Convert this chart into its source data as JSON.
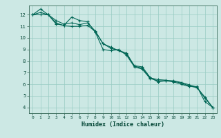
{
  "title": "",
  "xlabel": "Humidex (Indice chaleur)",
  "ylabel": "",
  "bg_color": "#cce8e4",
  "grid_color": "#99ccc4",
  "line_color": "#006655",
  "xlim": [
    -0.5,
    23.5
  ],
  "ylim": [
    3.5,
    12.8
  ],
  "xticks": [
    0,
    1,
    2,
    3,
    4,
    5,
    6,
    7,
    8,
    9,
    10,
    11,
    12,
    13,
    14,
    15,
    16,
    17,
    18,
    19,
    20,
    21,
    22,
    23
  ],
  "yticks": [
    4,
    5,
    6,
    7,
    8,
    9,
    10,
    11,
    12
  ],
  "series": [
    {
      "x": [
        0,
        1,
        2,
        3,
        4,
        5,
        6,
        7,
        8,
        9,
        10,
        11,
        12,
        13,
        14,
        15,
        16,
        17,
        18,
        19,
        20,
        21,
        22,
        23
      ],
      "y": [
        12.0,
        12.5,
        12.0,
        11.2,
        11.1,
        11.8,
        11.5,
        11.4,
        10.5,
        9.0,
        8.9,
        9.0,
        8.5,
        7.5,
        7.3,
        6.5,
        6.3,
        6.3,
        6.2,
        6.0,
        5.8,
        5.8,
        4.5,
        4.0
      ]
    },
    {
      "x": [
        0,
        1,
        2,
        3,
        4,
        5,
        6,
        7,
        8,
        9,
        10,
        11,
        12,
        13,
        14,
        15,
        16,
        17,
        18,
        19,
        20,
        21,
        22,
        23
      ],
      "y": [
        12.0,
        12.2,
        12.0,
        11.5,
        11.2,
        11.3,
        11.15,
        11.3,
        10.6,
        9.5,
        9.1,
        8.9,
        8.6,
        7.6,
        7.5,
        6.6,
        6.2,
        6.3,
        6.3,
        6.15,
        5.95,
        5.75,
        4.8,
        4.0
      ]
    },
    {
      "x": [
        0,
        1,
        2,
        3,
        4,
        5,
        6,
        7,
        8,
        9,
        10,
        11,
        12,
        13,
        14,
        15,
        16,
        17,
        18,
        19,
        20,
        21,
        22,
        23
      ],
      "y": [
        12.0,
        12.0,
        12.0,
        11.3,
        11.05,
        11.0,
        11.0,
        11.1,
        10.55,
        9.5,
        9.2,
        8.9,
        8.7,
        7.55,
        7.4,
        6.55,
        6.4,
        6.35,
        6.25,
        6.1,
        5.85,
        5.7,
        4.9,
        4.0
      ]
    }
  ]
}
